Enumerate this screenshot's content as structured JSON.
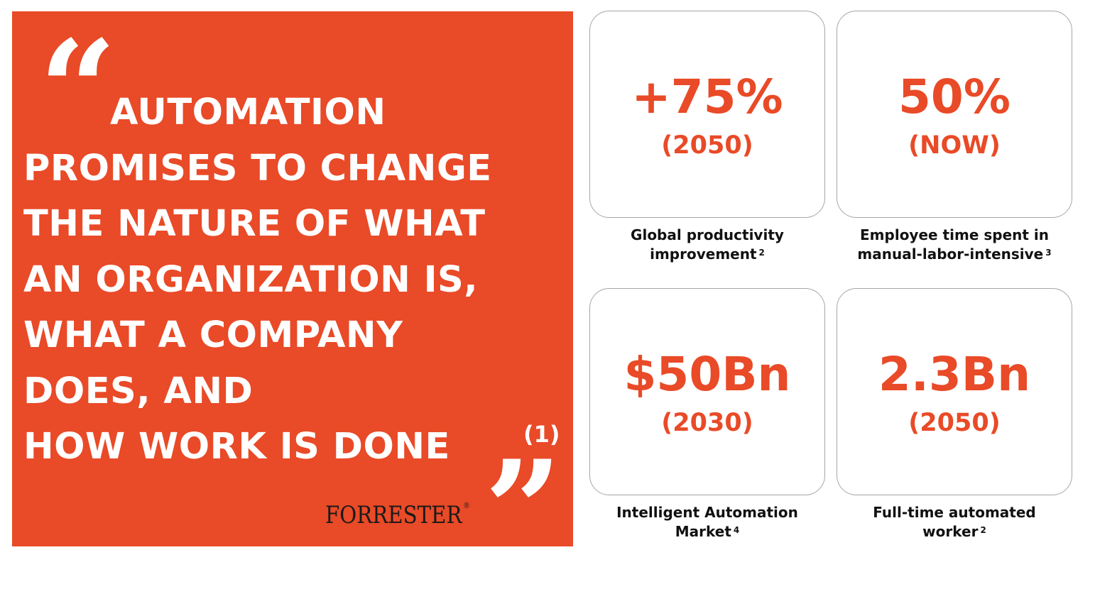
{
  "quote": {
    "lines": [
      "AUTOMATION",
      "PROMISES TO CHANGE",
      "THE NATURE OF WHAT",
      "AN ORGANIZATION IS,",
      "WHAT A COMPANY",
      "DOES, AND",
      "HOW WORK IS DONE"
    ],
    "open_mark": "“",
    "close_mark": "”",
    "footnote": "(1)",
    "source_logo": "FORRESTER",
    "source_logo_mark": "®"
  },
  "stats": [
    {
      "value": "+75%",
      "sub": "(2050)",
      "caption_lines": [
        "Global productivity",
        "improvement"
      ],
      "footnote": "2"
    },
    {
      "value": "50%",
      "sub": "(NOW)",
      "caption_lines": [
        "Employee time spent in",
        "manual-labor-intensive"
      ],
      "footnote": "3"
    },
    {
      "value": "$50Bn",
      "sub": "(2030)",
      "caption_lines": [
        "Intelligent Automation",
        "Market"
      ],
      "footnote": "4"
    },
    {
      "value": "2.3Bn",
      "sub": "(2050)",
      "caption_lines": [
        "Full-time automated",
        "worker"
      ],
      "footnote": "2"
    }
  ],
  "colors": {
    "accent": "#e94a27",
    "panel_text": "#ffffff",
    "caption_text": "#111111",
    "card_border": "#a6a6a6"
  }
}
